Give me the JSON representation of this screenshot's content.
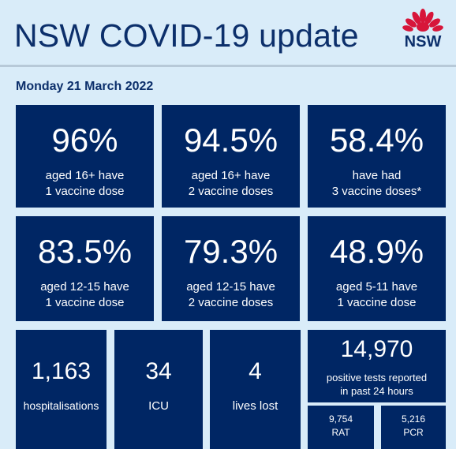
{
  "header": {
    "title": "NSW COVID-19 update",
    "logo_text": "NSW"
  },
  "date": "Monday 21 March 2022",
  "vaccination": [
    {
      "value": "96%",
      "line1": "aged 16+ have",
      "line2": "1 vaccine dose"
    },
    {
      "value": "94.5%",
      "line1": "aged 16+ have",
      "line2": "2 vaccine doses"
    },
    {
      "value": "58.4%",
      "line1": "have had",
      "line2": "3 vaccine doses*"
    },
    {
      "value": "83.5%",
      "line1": "aged 12-15 have",
      "line2": "1 vaccine dose"
    },
    {
      "value": "79.3%",
      "line1": "aged 12-15 have",
      "line2": "2 vaccine doses"
    },
    {
      "value": "48.9%",
      "line1": "aged 5-11 have",
      "line2": "1 vaccine dose"
    }
  ],
  "stats": {
    "hospitalisations": {
      "value": "1,163",
      "label": "hospitalisations"
    },
    "icu": {
      "value": "34",
      "label": "ICU"
    },
    "lives_lost": {
      "value": "4",
      "label": "lives lost"
    },
    "positive_tests": {
      "value": "14,970",
      "line1": "positive tests reported",
      "line2": "in past 24 hours",
      "rat": {
        "value": "9,754",
        "label": "RAT"
      },
      "pcr": {
        "value": "5,216",
        "label": "PCR"
      }
    }
  },
  "colors": {
    "tile": "#002664",
    "background": "#d9ecf9",
    "title": "#0c2f6b",
    "logo_red": "#d7153a"
  }
}
